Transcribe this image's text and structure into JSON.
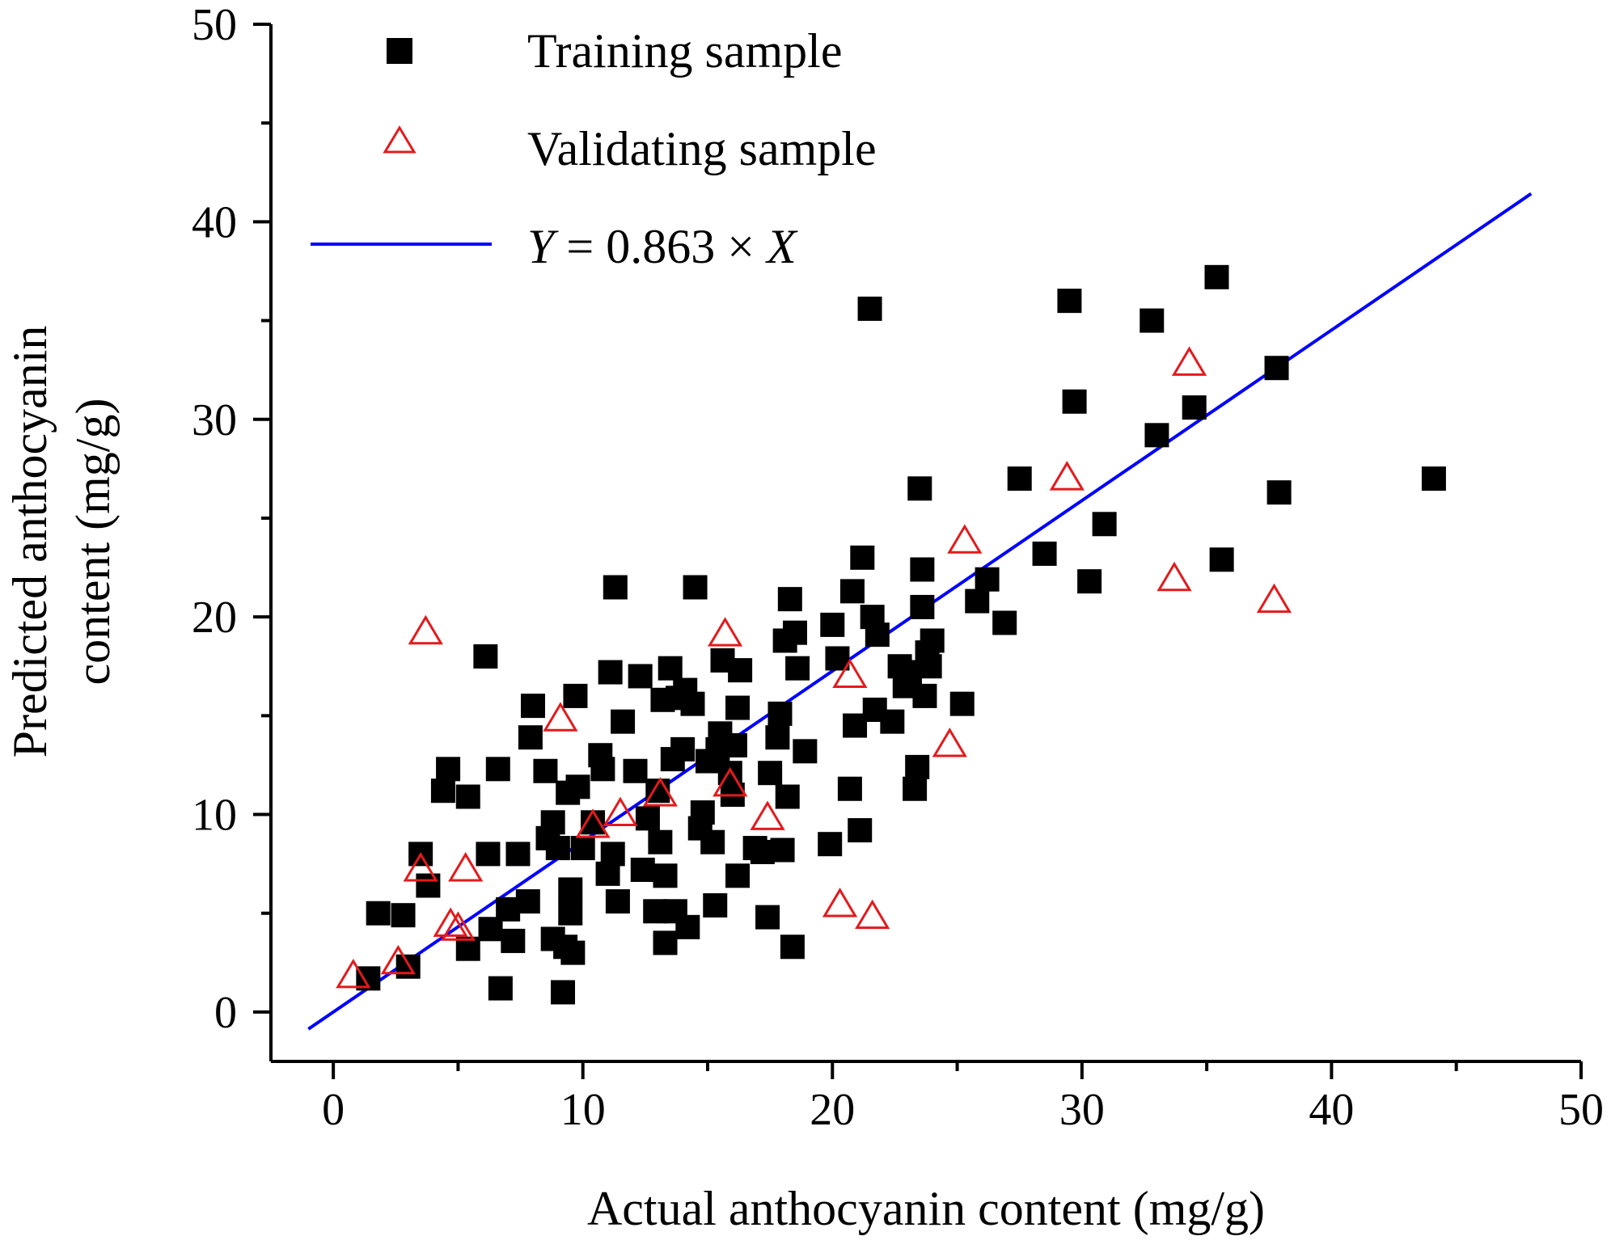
{
  "chart_data": {
    "type": "scatter",
    "xlabel": "Actual anthocyanin content (mg/g)",
    "ylabel_line1": "Predicted anthocyanin",
    "ylabel_line2": "content (mg/g)",
    "xlim": [
      -2.5,
      50
    ],
    "ylim": [
      -2.5,
      50
    ],
    "x_ticks": [
      0,
      10,
      20,
      30,
      40,
      50
    ],
    "y_ticks": [
      0,
      10,
      20,
      30,
      40,
      50
    ],
    "x_tick_labels": [
      "0",
      "10",
      "20",
      "30",
      "40",
      "50"
    ],
    "y_tick_labels": [
      "0",
      "10",
      "20",
      "30",
      "40",
      "50"
    ],
    "grid": false,
    "legend_position": "top-left",
    "fit_line": {
      "label": "Y = 0.863 × X",
      "label_parts": [
        "Y",
        " = 0.863 × ",
        "X"
      ],
      "slope": 0.863,
      "x_range": [
        -1,
        48
      ],
      "color": "#0000ff"
    },
    "series": [
      {
        "name": "Training sample",
        "marker": "filled-square",
        "color": "#000000",
        "points": [
          [
            1.4,
            1.7
          ],
          [
            1.8,
            5.0
          ],
          [
            2.8,
            4.9
          ],
          [
            3.0,
            2.3
          ],
          [
            3.5,
            8.0
          ],
          [
            3.8,
            6.4
          ],
          [
            4.4,
            11.2
          ],
          [
            4.6,
            12.3
          ],
          [
            5.4,
            10.9
          ],
          [
            5.4,
            3.2
          ],
          [
            6.1,
            18.0
          ],
          [
            6.2,
            8.0
          ],
          [
            6.3,
            4.2
          ],
          [
            6.6,
            12.3
          ],
          [
            6.7,
            1.2
          ],
          [
            7.0,
            5.2
          ],
          [
            7.2,
            3.6
          ],
          [
            7.4,
            8.0
          ],
          [
            7.8,
            5.6
          ],
          [
            7.9,
            13.9
          ],
          [
            8.0,
            15.5
          ],
          [
            8.5,
            12.2
          ],
          [
            8.6,
            8.8
          ],
          [
            8.8,
            9.6
          ],
          [
            8.8,
            3.7
          ],
          [
            9.0,
            8.3
          ],
          [
            9.2,
            1.0
          ],
          [
            9.3,
            3.3
          ],
          [
            9.4,
            11.1
          ],
          [
            9.5,
            5.0
          ],
          [
            9.5,
            6.2
          ],
          [
            9.6,
            3.0
          ],
          [
            9.7,
            16.0
          ],
          [
            9.8,
            11.4
          ],
          [
            10.0,
            8.3
          ],
          [
            10.4,
            9.6
          ],
          [
            10.7,
            13.0
          ],
          [
            10.8,
            12.3
          ],
          [
            11.0,
            7.0
          ],
          [
            11.1,
            17.2
          ],
          [
            11.2,
            8.0
          ],
          [
            11.3,
            21.5
          ],
          [
            11.4,
            5.6
          ],
          [
            11.6,
            14.7
          ],
          [
            12.1,
            12.2
          ],
          [
            12.3,
            17.0
          ],
          [
            12.4,
            7.2
          ],
          [
            12.6,
            9.8
          ],
          [
            12.9,
            5.1
          ],
          [
            13.0,
            11.2
          ],
          [
            13.1,
            8.6
          ],
          [
            13.2,
            15.8
          ],
          [
            13.3,
            6.9
          ],
          [
            13.3,
            3.5
          ],
          [
            13.5,
            17.4
          ],
          [
            13.6,
            12.8
          ],
          [
            13.7,
            5.1
          ],
          [
            13.8,
            15.9
          ],
          [
            14.0,
            13.3
          ],
          [
            14.1,
            16.3
          ],
          [
            14.2,
            4.3
          ],
          [
            14.4,
            15.6
          ],
          [
            14.5,
            21.5
          ],
          [
            14.7,
            9.3
          ],
          [
            14.8,
            10.1
          ],
          [
            15.0,
            12.7
          ],
          [
            15.2,
            8.6
          ],
          [
            15.3,
            5.4
          ],
          [
            15.4,
            13.3
          ],
          [
            15.5,
            14.1
          ],
          [
            15.6,
            17.8
          ],
          [
            15.9,
            12.1
          ],
          [
            16.0,
            11.0
          ],
          [
            16.1,
            13.5
          ],
          [
            16.2,
            6.9
          ],
          [
            16.2,
            15.4
          ],
          [
            16.3,
            17.3
          ],
          [
            16.9,
            8.3
          ],
          [
            17.2,
            8.1
          ],
          [
            17.4,
            4.8
          ],
          [
            17.5,
            12.1
          ],
          [
            17.8,
            13.9
          ],
          [
            17.9,
            15.1
          ],
          [
            18.0,
            8.2
          ],
          [
            18.1,
            18.8
          ],
          [
            18.2,
            10.9
          ],
          [
            18.3,
            20.9
          ],
          [
            18.4,
            3.3
          ],
          [
            18.5,
            19.2
          ],
          [
            18.6,
            17.4
          ],
          [
            18.9,
            13.2
          ],
          [
            19.9,
            8.5
          ],
          [
            20.0,
            19.6
          ],
          [
            20.2,
            17.9
          ],
          [
            20.7,
            11.3
          ],
          [
            20.8,
            21.3
          ],
          [
            20.9,
            14.5
          ],
          [
            21.1,
            9.2
          ],
          [
            21.2,
            23.0
          ],
          [
            21.5,
            35.6
          ],
          [
            21.6,
            20.0
          ],
          [
            21.7,
            15.3
          ],
          [
            21.8,
            19.1
          ],
          [
            22.4,
            14.7
          ],
          [
            22.7,
            17.5
          ],
          [
            22.9,
            16.5
          ],
          [
            23.1,
            17.2
          ],
          [
            23.3,
            11.3
          ],
          [
            23.4,
            12.4
          ],
          [
            23.5,
            26.5
          ],
          [
            23.6,
            22.4
          ],
          [
            23.6,
            20.5
          ],
          [
            23.7,
            16.0
          ],
          [
            23.8,
            18.2
          ],
          [
            23.9,
            17.5
          ],
          [
            24.0,
            18.8
          ],
          [
            25.2,
            15.6
          ],
          [
            25.8,
            20.8
          ],
          [
            26.2,
            21.9
          ],
          [
            26.9,
            19.7
          ],
          [
            27.5,
            27.0
          ],
          [
            28.5,
            23.2
          ],
          [
            29.5,
            36.0
          ],
          [
            29.7,
            30.9
          ],
          [
            30.3,
            21.8
          ],
          [
            30.9,
            24.7
          ],
          [
            32.8,
            35.0
          ],
          [
            33.0,
            29.2
          ],
          [
            34.5,
            30.6
          ],
          [
            35.4,
            37.2
          ],
          [
            35.6,
            22.9
          ],
          [
            37.8,
            32.6
          ],
          [
            37.9,
            26.3
          ],
          [
            44.1,
            27.0
          ]
        ]
      },
      {
        "name": "Validating sample",
        "marker": "open-triangle",
        "color": "#e31a1c",
        "points": [
          [
            0.8,
            1.8
          ],
          [
            2.6,
            2.5
          ],
          [
            3.5,
            7.2
          ],
          [
            3.7,
            19.2
          ],
          [
            4.7,
            4.4
          ],
          [
            5.0,
            4.2
          ],
          [
            5.3,
            7.2
          ],
          [
            9.1,
            14.8
          ],
          [
            10.4,
            9.4
          ],
          [
            11.5,
            10.0
          ],
          [
            13.1,
            11.0
          ],
          [
            15.7,
            19.1
          ],
          [
            15.9,
            11.5
          ],
          [
            17.4,
            9.8
          ],
          [
            20.3,
            5.4
          ],
          [
            20.7,
            17.0
          ],
          [
            21.6,
            4.8
          ],
          [
            24.7,
            13.5
          ],
          [
            25.3,
            23.8
          ],
          [
            29.4,
            27.0
          ],
          [
            33.7,
            21.9
          ],
          [
            34.3,
            32.8
          ],
          [
            37.7,
            20.8
          ]
        ]
      }
    ]
  }
}
